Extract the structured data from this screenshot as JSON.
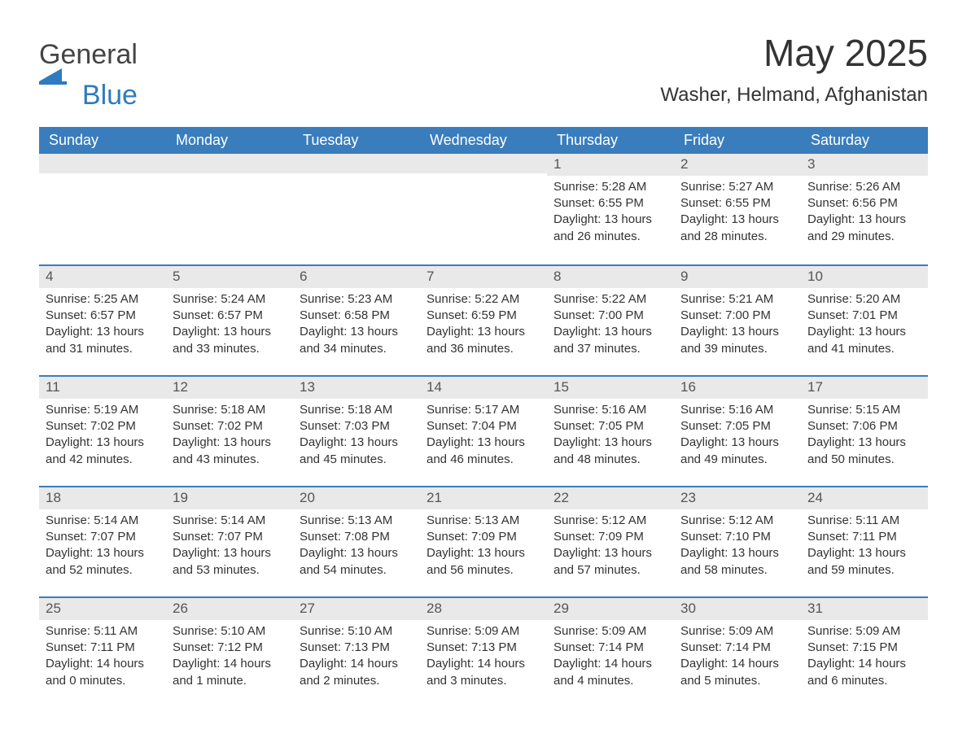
{
  "brand": {
    "name_a": "General",
    "name_b": "Blue",
    "color_a": "#444444",
    "color_b": "#2f7bbf",
    "mark_color": "#2f7bbf"
  },
  "title": "May 2025",
  "location": "Washer, Helmand, Afghanistan",
  "colors": {
    "header_bg": "#3a7dbd",
    "header_text": "#ffffff",
    "week_divider": "#3a7dbd",
    "daynum_bg": "#e9e9e9",
    "body_text": "#333333",
    "page_bg": "#ffffff"
  },
  "days_of_week": [
    "Sunday",
    "Monday",
    "Tuesday",
    "Wednesday",
    "Thursday",
    "Friday",
    "Saturday"
  ],
  "weeks": [
    [
      null,
      null,
      null,
      null,
      {
        "n": "1",
        "sunrise": "5:28 AM",
        "sunset": "6:55 PM",
        "daylight": "13 hours and 26 minutes."
      },
      {
        "n": "2",
        "sunrise": "5:27 AM",
        "sunset": "6:55 PM",
        "daylight": "13 hours and 28 minutes."
      },
      {
        "n": "3",
        "sunrise": "5:26 AM",
        "sunset": "6:56 PM",
        "daylight": "13 hours and 29 minutes."
      }
    ],
    [
      {
        "n": "4",
        "sunrise": "5:25 AM",
        "sunset": "6:57 PM",
        "daylight": "13 hours and 31 minutes."
      },
      {
        "n": "5",
        "sunrise": "5:24 AM",
        "sunset": "6:57 PM",
        "daylight": "13 hours and 33 minutes."
      },
      {
        "n": "6",
        "sunrise": "5:23 AM",
        "sunset": "6:58 PM",
        "daylight": "13 hours and 34 minutes."
      },
      {
        "n": "7",
        "sunrise": "5:22 AM",
        "sunset": "6:59 PM",
        "daylight": "13 hours and 36 minutes."
      },
      {
        "n": "8",
        "sunrise": "5:22 AM",
        "sunset": "7:00 PM",
        "daylight": "13 hours and 37 minutes."
      },
      {
        "n": "9",
        "sunrise": "5:21 AM",
        "sunset": "7:00 PM",
        "daylight": "13 hours and 39 minutes."
      },
      {
        "n": "10",
        "sunrise": "5:20 AM",
        "sunset": "7:01 PM",
        "daylight": "13 hours and 41 minutes."
      }
    ],
    [
      {
        "n": "11",
        "sunrise": "5:19 AM",
        "sunset": "7:02 PM",
        "daylight": "13 hours and 42 minutes."
      },
      {
        "n": "12",
        "sunrise": "5:18 AM",
        "sunset": "7:02 PM",
        "daylight": "13 hours and 43 minutes."
      },
      {
        "n": "13",
        "sunrise": "5:18 AM",
        "sunset": "7:03 PM",
        "daylight": "13 hours and 45 minutes."
      },
      {
        "n": "14",
        "sunrise": "5:17 AM",
        "sunset": "7:04 PM",
        "daylight": "13 hours and 46 minutes."
      },
      {
        "n": "15",
        "sunrise": "5:16 AM",
        "sunset": "7:05 PM",
        "daylight": "13 hours and 48 minutes."
      },
      {
        "n": "16",
        "sunrise": "5:16 AM",
        "sunset": "7:05 PM",
        "daylight": "13 hours and 49 minutes."
      },
      {
        "n": "17",
        "sunrise": "5:15 AM",
        "sunset": "7:06 PM",
        "daylight": "13 hours and 50 minutes."
      }
    ],
    [
      {
        "n": "18",
        "sunrise": "5:14 AM",
        "sunset": "7:07 PM",
        "daylight": "13 hours and 52 minutes."
      },
      {
        "n": "19",
        "sunrise": "5:14 AM",
        "sunset": "7:07 PM",
        "daylight": "13 hours and 53 minutes."
      },
      {
        "n": "20",
        "sunrise": "5:13 AM",
        "sunset": "7:08 PM",
        "daylight": "13 hours and 54 minutes."
      },
      {
        "n": "21",
        "sunrise": "5:13 AM",
        "sunset": "7:09 PM",
        "daylight": "13 hours and 56 minutes."
      },
      {
        "n": "22",
        "sunrise": "5:12 AM",
        "sunset": "7:09 PM",
        "daylight": "13 hours and 57 minutes."
      },
      {
        "n": "23",
        "sunrise": "5:12 AM",
        "sunset": "7:10 PM",
        "daylight": "13 hours and 58 minutes."
      },
      {
        "n": "24",
        "sunrise": "5:11 AM",
        "sunset": "7:11 PM",
        "daylight": "13 hours and 59 minutes."
      }
    ],
    [
      {
        "n": "25",
        "sunrise": "5:11 AM",
        "sunset": "7:11 PM",
        "daylight": "14 hours and 0 minutes."
      },
      {
        "n": "26",
        "sunrise": "5:10 AM",
        "sunset": "7:12 PM",
        "daylight": "14 hours and 1 minute."
      },
      {
        "n": "27",
        "sunrise": "5:10 AM",
        "sunset": "7:13 PM",
        "daylight": "14 hours and 2 minutes."
      },
      {
        "n": "28",
        "sunrise": "5:09 AM",
        "sunset": "7:13 PM",
        "daylight": "14 hours and 3 minutes."
      },
      {
        "n": "29",
        "sunrise": "5:09 AM",
        "sunset": "7:14 PM",
        "daylight": "14 hours and 4 minutes."
      },
      {
        "n": "30",
        "sunrise": "5:09 AM",
        "sunset": "7:14 PM",
        "daylight": "14 hours and 5 minutes."
      },
      {
        "n": "31",
        "sunrise": "5:09 AM",
        "sunset": "7:15 PM",
        "daylight": "14 hours and 6 minutes."
      }
    ]
  ],
  "labels": {
    "sunrise": "Sunrise: ",
    "sunset": "Sunset: ",
    "daylight": "Daylight: "
  }
}
